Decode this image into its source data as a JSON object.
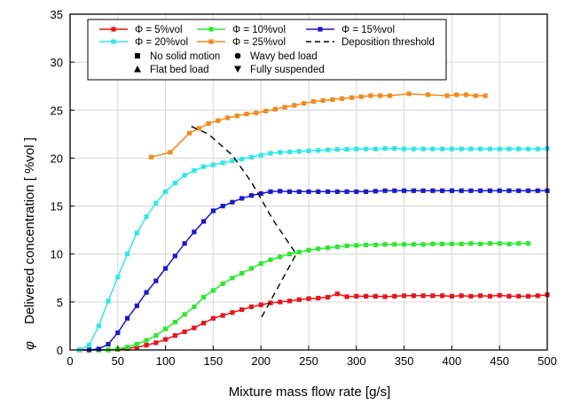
{
  "chart_data": {
    "type": "line",
    "xlabel": "Mixture mass flow rate [g/s]",
    "ylabel": "Delivered concentration [ %vol ]",
    "ylabel_symbol": "φ",
    "xlim": [
      0,
      500
    ],
    "ylim": [
      0,
      35
    ],
    "x_ticks": [
      "0",
      "50",
      "100",
      "150",
      "200",
      "250",
      "300",
      "350",
      "400",
      "450",
      "500"
    ],
    "y_ticks": [
      "0",
      "5",
      "10",
      "15",
      "20",
      "25",
      "30",
      "35"
    ],
    "grid": true,
    "legend": {
      "placement": "top",
      "entries": [
        {
          "label": "Φ = 5%vol",
          "color": "#e8141c",
          "marker": "square",
          "line": "solid"
        },
        {
          "label": "Φ = 10%vol",
          "color": "#2ee82e",
          "marker": "square",
          "line": "solid"
        },
        {
          "label": "Φ = 15%vol",
          "color": "#1a1ac8",
          "marker": "square",
          "line": "solid"
        },
        {
          "label": "Φ = 20%vol",
          "color": "#2ee8e8",
          "marker": "square",
          "line": "solid"
        },
        {
          "label": "Φ = 25%vol",
          "color": "#f28a1e",
          "marker": "square",
          "line": "solid"
        },
        {
          "label": "Deposition threshold",
          "color": "#000000",
          "marker": "none",
          "line": "dashed"
        },
        {
          "label": "No solid motion",
          "color": "#000000",
          "marker": "square",
          "line": "none"
        },
        {
          "label": "Wavy bed load",
          "color": "#000000",
          "marker": "circle",
          "line": "none"
        },
        {
          "label": "Flat bed load",
          "color": "#000000",
          "marker": "triangle-up",
          "line": "none"
        },
        {
          "label": "Fully suspended",
          "color": "#000000",
          "marker": "triangle-down",
          "line": "none"
        }
      ]
    },
    "series": [
      {
        "name": "Φ = 5%vol",
        "color": "#e8141c",
        "x": [
          10,
          20,
          30,
          40,
          50,
          60,
          70,
          80,
          90,
          100,
          110,
          120,
          130,
          140,
          150,
          160,
          170,
          180,
          190,
          200,
          210,
          220,
          230,
          240,
          250,
          260,
          270,
          280,
          290,
          300,
          310,
          320,
          330,
          340,
          350,
          360,
          370,
          380,
          390,
          400,
          410,
          420,
          430,
          440,
          450,
          460,
          470,
          480,
          490,
          500
        ],
        "y": [
          0,
          0,
          0,
          0,
          0.05,
          0.15,
          0.3,
          0.5,
          0.75,
          1.1,
          1.5,
          1.9,
          2.3,
          2.8,
          3.3,
          3.6,
          3.9,
          4.2,
          4.5,
          4.7,
          4.9,
          5.0,
          5.1,
          5.25,
          5.35,
          5.4,
          5.5,
          5.85,
          5.55,
          5.6,
          5.6,
          5.6,
          5.55,
          5.6,
          5.65,
          5.65,
          5.65,
          5.65,
          5.65,
          5.6,
          5.65,
          5.6,
          5.65,
          5.6,
          5.7,
          5.6,
          5.6,
          5.6,
          5.65,
          5.75
        ]
      },
      {
        "name": "Φ = 10%vol",
        "color": "#2ee82e",
        "x": [
          20,
          30,
          40,
          50,
          60,
          70,
          80,
          90,
          100,
          110,
          120,
          130,
          140,
          150,
          160,
          170,
          180,
          190,
          200,
          210,
          220,
          230,
          240,
          250,
          260,
          270,
          280,
          290,
          300,
          310,
          320,
          330,
          340,
          350,
          360,
          370,
          380,
          390,
          400,
          410,
          420,
          430,
          440,
          450,
          460,
          470,
          480
        ],
        "y": [
          0,
          0,
          0,
          0.1,
          0.3,
          0.6,
          1.0,
          1.5,
          2.2,
          2.9,
          3.7,
          4.5,
          5.5,
          6.2,
          6.9,
          7.5,
          8.0,
          8.5,
          9.0,
          9.4,
          9.7,
          10.0,
          10.2,
          10.4,
          10.55,
          10.65,
          10.75,
          10.85,
          10.9,
          10.95,
          10.95,
          11.0,
          11.0,
          11.0,
          11.0,
          11.0,
          11.05,
          11.05,
          11.05,
          11.05,
          11.1,
          11.05,
          11.1,
          11.1,
          11.05,
          11.1,
          11.1
        ]
      },
      {
        "name": "Φ = 15%vol",
        "color": "#1a1ac8",
        "x": [
          10,
          20,
          30,
          40,
          50,
          60,
          70,
          80,
          90,
          100,
          110,
          120,
          130,
          140,
          150,
          160,
          170,
          180,
          190,
          200,
          210,
          220,
          230,
          240,
          250,
          260,
          270,
          280,
          290,
          300,
          310,
          320,
          330,
          340,
          350,
          360,
          370,
          380,
          390,
          400,
          410,
          420,
          430,
          440,
          450,
          460,
          470,
          480,
          490,
          500
        ],
        "y": [
          0,
          0,
          0.1,
          0.6,
          1.8,
          3.3,
          4.6,
          6.0,
          7.2,
          8.5,
          9.8,
          11.1,
          12.3,
          13.4,
          14.5,
          15.0,
          15.4,
          15.8,
          16.1,
          16.3,
          16.5,
          16.55,
          16.5,
          16.5,
          16.5,
          16.5,
          16.5,
          16.5,
          16.5,
          16.5,
          16.5,
          16.55,
          16.6,
          16.6,
          16.6,
          16.6,
          16.6,
          16.6,
          16.6,
          16.6,
          16.6,
          16.6,
          16.6,
          16.6,
          16.6,
          16.6,
          16.6,
          16.6,
          16.6,
          16.6
        ]
      },
      {
        "name": "Φ = 20%vol",
        "color": "#2ee8e8",
        "x": [
          10,
          20,
          30,
          40,
          50,
          60,
          70,
          80,
          90,
          100,
          110,
          120,
          130,
          140,
          150,
          160,
          170,
          180,
          190,
          200,
          210,
          220,
          230,
          240,
          250,
          260,
          270,
          280,
          290,
          300,
          310,
          320,
          330,
          340,
          350,
          360,
          370,
          380,
          390,
          400,
          410,
          420,
          430,
          440,
          450,
          460,
          470,
          480,
          490,
          500
        ],
        "y": [
          0,
          0.5,
          2.5,
          5.1,
          7.6,
          10.0,
          12.2,
          13.9,
          15.3,
          16.5,
          17.4,
          18.2,
          18.7,
          19.1,
          19.3,
          19.5,
          19.7,
          19.9,
          20.1,
          20.3,
          20.5,
          20.6,
          20.65,
          20.7,
          20.75,
          20.8,
          20.85,
          20.9,
          20.9,
          20.95,
          20.95,
          20.95,
          21.0,
          21.0,
          20.95,
          20.95,
          20.95,
          20.95,
          20.95,
          20.95,
          20.95,
          20.95,
          20.95,
          20.95,
          20.95,
          20.95,
          20.95,
          20.95,
          20.95,
          21.0
        ]
      },
      {
        "name": "Φ = 25%vol",
        "color": "#f28a1e",
        "x": [
          85,
          105,
          125,
          135,
          145,
          155,
          165,
          175,
          185,
          195,
          205,
          215,
          225,
          235,
          245,
          255,
          265,
          275,
          285,
          295,
          305,
          315,
          325,
          335,
          355,
          375,
          395,
          405,
          415,
          425,
          435
        ],
        "y": [
          20.1,
          20.6,
          22.6,
          23.1,
          23.6,
          23.9,
          24.2,
          24.4,
          24.6,
          24.7,
          24.9,
          25.1,
          25.3,
          25.5,
          25.7,
          25.9,
          26.0,
          26.1,
          26.2,
          26.3,
          26.4,
          26.5,
          26.5,
          26.5,
          26.7,
          26.6,
          26.5,
          26.6,
          26.6,
          26.5,
          26.5
        ]
      },
      {
        "name": "Deposition threshold",
        "color": "#000000",
        "dashed": true,
        "x": [
          127,
          145,
          170,
          190,
          213,
          237,
          200
        ],
        "y": [
          23.3,
          22.5,
          20.3,
          17.5,
          13.5,
          10.0,
          3.3
        ]
      }
    ]
  }
}
